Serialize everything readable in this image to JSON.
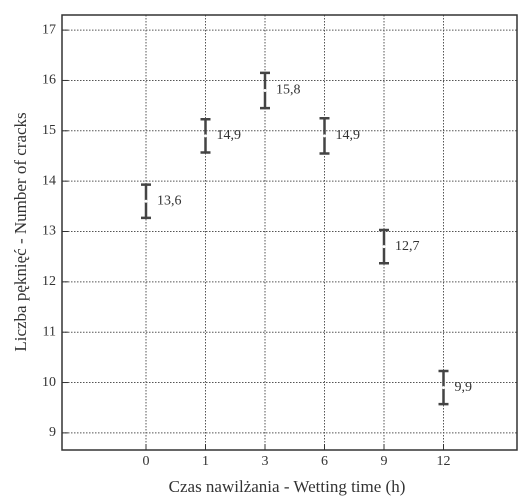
{
  "chart_data": {
    "type": "errorbar",
    "x_label": "Czas nawilżania - Wetting time (h)",
    "y_label": "Liczba pęknięć - Number of cracks",
    "categories": [
      "0",
      "1",
      "3",
      "6",
      "9",
      "12"
    ],
    "values": [
      13.6,
      14.9,
      15.8,
      14.9,
      12.7,
      9.9
    ],
    "value_labels": [
      "13,6",
      "14,9",
      "15,8",
      "14,9",
      "12,7",
      "9,9"
    ],
    "errors": [
      0.33,
      0.33,
      0.35,
      0.35,
      0.33,
      0.33
    ],
    "color": "#444444",
    "ylim": [
      8.66,
      17.3
    ],
    "yticks": [
      9,
      10,
      11,
      12,
      13,
      14,
      15,
      16,
      17
    ],
    "grid": true
  }
}
